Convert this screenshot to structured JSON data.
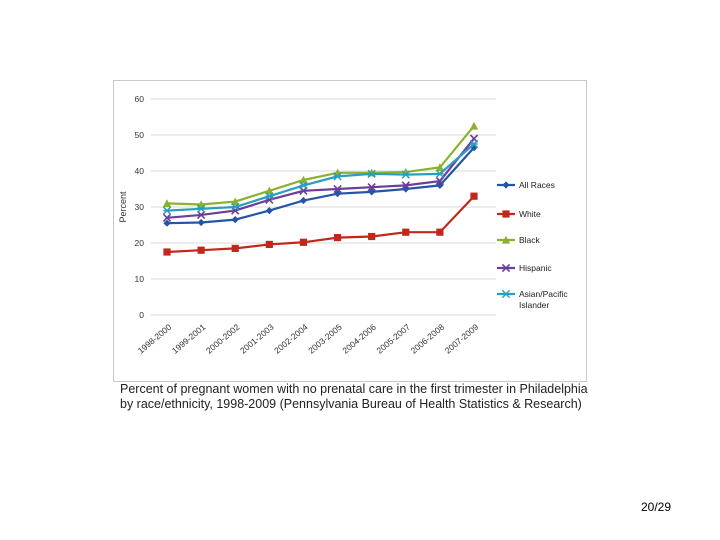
{
  "caption": {
    "line1": "Percent of pregnant women with no prenatal care in the first trimester in Philadelphia",
    "line2": "by race/ethnicity, 1998-2009 (Pennsylvania Bureau of Health Statistics & Research)"
  },
  "page_number": "20/29",
  "chart_data": {
    "type": "line",
    "title": "",
    "xlabel": "",
    "ylabel": "Percent",
    "ylim": [
      0,
      60
    ],
    "yticks": [
      0,
      10,
      20,
      30,
      40,
      50,
      60
    ],
    "grid": "horizontal",
    "legend_position": "right",
    "categories": [
      "1998-2000",
      "1999-2001",
      "2000-2002",
      "2001-2003",
      "2002-2004",
      "2003-2005",
      "2004-2006",
      "2005-2007",
      "2006-2008",
      "2007-2009"
    ],
    "series": [
      {
        "name": "All Races",
        "color": "#2456a6",
        "marker": "diamond",
        "values": [
          25.5,
          25.7,
          26.5,
          29,
          31.8,
          33.7,
          34.2,
          35,
          36,
          46.5
        ]
      },
      {
        "name": "White",
        "color": "#c0281b",
        "marker": "square",
        "values": [
          17.5,
          18,
          18.5,
          19.6,
          20.2,
          21.5,
          21.8,
          23,
          23,
          33
        ]
      },
      {
        "name": "Black",
        "color": "#8bb12d",
        "marker": "triangle",
        "values": [
          31,
          30.7,
          31.5,
          34.5,
          37.5,
          39.5,
          39.5,
          39.7,
          41,
          52.5
        ]
      },
      {
        "name": "Hispanic",
        "color": "#6b3e99",
        "marker": "x",
        "values": [
          27,
          27.8,
          29,
          32,
          34.5,
          35,
          35.5,
          36,
          37.2,
          49
        ]
      },
      {
        "name": "Asian/Pacific Islander",
        "color": "#2a9ec0",
        "marker": "star",
        "values": [
          29,
          29.5,
          30,
          33,
          36,
          38.5,
          39.2,
          39,
          39.2,
          47.5
        ]
      }
    ]
  }
}
